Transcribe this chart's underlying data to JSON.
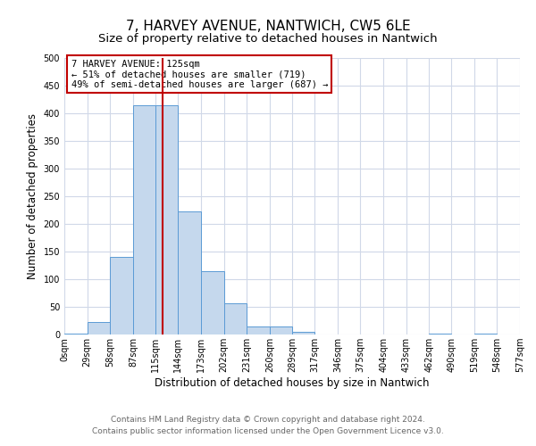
{
  "title": "7, HARVEY AVENUE, NANTWICH, CW5 6LE",
  "subtitle": "Size of property relative to detached houses in Nantwich",
  "xlabel": "Distribution of detached houses by size in Nantwich",
  "ylabel": "Number of detached properties",
  "bin_edges": [
    0,
    29,
    58,
    87,
    115,
    144,
    173,
    202,
    231,
    260,
    289,
    317,
    346,
    375,
    404,
    433,
    462,
    490,
    519,
    548,
    577
  ],
  "bin_counts": [
    2,
    22,
    140,
    415,
    415,
    222,
    115,
    57,
    15,
    15,
    5,
    0,
    0,
    0,
    0,
    0,
    2,
    0,
    2,
    0
  ],
  "bar_color": "#c5d8ed",
  "bar_edge_color": "#5b9bd5",
  "property_size": 125,
  "vline_color": "#c00000",
  "annotation_text": "7 HARVEY AVENUE: 125sqm\n← 51% of detached houses are smaller (719)\n49% of semi-detached houses are larger (687) →",
  "annotation_box_color": "#ffffff",
  "annotation_box_edge_color": "#c00000",
  "ylim": [
    0,
    500
  ],
  "yticks": [
    0,
    50,
    100,
    150,
    200,
    250,
    300,
    350,
    400,
    450,
    500
  ],
  "tick_labels": [
    "0sqm",
    "29sqm",
    "58sqm",
    "87sqm",
    "115sqm",
    "144sqm",
    "173sqm",
    "202sqm",
    "231sqm",
    "260sqm",
    "289sqm",
    "317sqm",
    "346sqm",
    "375sqm",
    "404sqm",
    "433sqm",
    "462sqm",
    "490sqm",
    "519sqm",
    "548sqm",
    "577sqm"
  ],
  "footer_line1": "Contains HM Land Registry data © Crown copyright and database right 2024.",
  "footer_line2": "Contains public sector information licensed under the Open Government Licence v3.0.",
  "background_color": "#ffffff",
  "grid_color": "#d0d8e8",
  "title_fontsize": 11,
  "subtitle_fontsize": 9.5,
  "axis_label_fontsize": 8.5,
  "tick_fontsize": 7,
  "annotation_fontsize": 7.5,
  "footer_fontsize": 6.5
}
